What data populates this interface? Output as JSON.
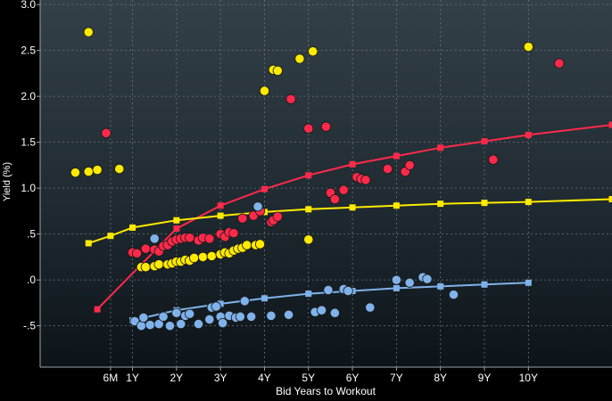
{
  "chart_data": {
    "type": "scatter",
    "title": "",
    "xlabel": "Bid Years to Workout",
    "ylabel": "Yield (%)",
    "xlim": [
      -1.1,
      11.9
    ],
    "ylim": [
      -0.95,
      3.05
    ],
    "grid": true,
    "x_ticks": [
      {
        "value": 0.5,
        "label": "6M"
      },
      {
        "value": 1,
        "label": "1Y"
      },
      {
        "value": 2,
        "label": "2Y"
      },
      {
        "value": 3,
        "label": "3Y"
      },
      {
        "value": 4,
        "label": "4Y"
      },
      {
        "value": 5,
        "label": "5Y"
      },
      {
        "value": 6,
        "label": "6Y"
      },
      {
        "value": 7,
        "label": "7Y"
      },
      {
        "value": 8,
        "label": "8Y"
      },
      {
        "value": 9,
        "label": "9Y"
      },
      {
        "value": 10,
        "label": "10Y"
      }
    ],
    "y_ticks": [
      {
        "value": 3.0,
        "label": "3.0"
      },
      {
        "value": 2.5,
        "label": "2.5"
      },
      {
        "value": 2.0,
        "label": "2.0"
      },
      {
        "value": 1.5,
        "label": "1.5"
      },
      {
        "value": 1.0,
        "label": "1.0"
      },
      {
        "value": 0.5,
        "label": ".5"
      },
      {
        "value": 0.0,
        "label": ".0"
      },
      {
        "value": -0.5,
        "label": "-.5"
      }
    ],
    "curves": [
      {
        "color": "#ff2a4a",
        "marker": "square",
        "x": [
          0.2,
          2.0,
          3.0,
          4.0,
          5.0,
          6.0,
          7.0,
          8.0,
          9.0,
          10.0,
          11.9
        ],
        "y": [
          -0.32,
          0.56,
          0.81,
          0.99,
          1.14,
          1.26,
          1.35,
          1.44,
          1.51,
          1.58,
          1.69
        ]
      },
      {
        "color": "#ffea00",
        "marker": "square",
        "x": [
          0.0,
          0.5,
          1.0,
          2.0,
          3.0,
          4.0,
          5.0,
          6.0,
          7.0,
          8.0,
          9.0,
          10.0,
          11.9
        ],
        "y": [
          0.4,
          0.48,
          0.57,
          0.65,
          0.7,
          0.74,
          0.77,
          0.79,
          0.81,
          0.83,
          0.84,
          0.85,
          0.88
        ]
      },
      {
        "color": "#7fb2ea",
        "marker": "square",
        "x": [
          1.0,
          2.0,
          3.0,
          4.0,
          5.0,
          6.0,
          7.0,
          8.0,
          9.0,
          10.0
        ],
        "y": [
          -0.44,
          -0.33,
          -0.26,
          -0.2,
          -0.15,
          -0.12,
          -0.09,
          -0.07,
          -0.05,
          -0.03
        ]
      }
    ],
    "points": [
      {
        "color": "#ff2a4a",
        "x": [
          0.4,
          1.0,
          1.1,
          1.3,
          1.5,
          1.6,
          1.7,
          1.8,
          1.9,
          2.0,
          2.1,
          2.2,
          2.3,
          2.5,
          2.6,
          2.75,
          3.0,
          3.1,
          3.2,
          3.3,
          3.5,
          3.75,
          3.9,
          4.15,
          4.2,
          4.3,
          4.6,
          5.0,
          5.4,
          5.5,
          5.6,
          5.8,
          6.1,
          6.2,
          6.3,
          6.8,
          7.2,
          7.3,
          9.2,
          10.7
        ],
        "y": [
          1.6,
          0.3,
          0.29,
          0.34,
          0.33,
          0.31,
          0.37,
          0.38,
          0.42,
          0.44,
          0.45,
          0.46,
          0.46,
          0.43,
          0.46,
          0.45,
          0.5,
          0.47,
          0.52,
          0.51,
          0.67,
          0.7,
          0.75,
          0.63,
          0.65,
          0.69,
          1.97,
          1.65,
          1.67,
          0.95,
          0.88,
          0.98,
          1.12,
          1.1,
          1.09,
          1.21,
          1.18,
          1.25,
          1.31,
          2.36
        ]
      },
      {
        "color": "#ffea00",
        "x": [
          -0.3,
          0.0,
          0.0,
          0.2,
          0.7,
          1.2,
          1.3,
          1.5,
          1.6,
          1.8,
          1.9,
          2.0,
          2.1,
          2.2,
          2.3,
          2.4,
          2.6,
          2.8,
          3.0,
          3.1,
          3.2,
          3.3,
          3.4,
          3.5,
          3.6,
          3.8,
          3.9,
          4.0,
          4.2,
          4.3,
          4.8,
          5.0,
          5.1,
          10.0
        ],
        "y": [
          1.17,
          2.7,
          1.18,
          1.2,
          1.21,
          0.14,
          0.14,
          0.15,
          0.17,
          0.17,
          0.18,
          0.2,
          0.2,
          0.22,
          0.21,
          0.24,
          0.25,
          0.26,
          0.28,
          0.3,
          0.29,
          0.32,
          0.34,
          0.35,
          0.38,
          0.38,
          0.39,
          2.06,
          2.29,
          2.28,
          2.41,
          0.44,
          2.49,
          2.54
        ]
      },
      {
        "color": "#7fb2ea",
        "x": [
          1.05,
          1.2,
          1.25,
          1.4,
          1.5,
          1.6,
          1.7,
          1.85,
          2.0,
          2.1,
          2.2,
          2.3,
          2.5,
          2.75,
          2.8,
          2.9,
          3.0,
          3.05,
          3.2,
          3.35,
          3.45,
          3.55,
          3.7,
          3.85,
          4.15,
          4.55,
          5.15,
          5.3,
          5.45,
          5.6,
          5.8,
          5.9,
          6.4,
          7.0,
          7.3,
          7.6,
          7.7,
          8.3
        ],
        "y": [
          -0.45,
          -0.5,
          -0.41,
          -0.49,
          0.45,
          -0.48,
          -0.4,
          -0.5,
          -0.36,
          -0.48,
          -0.39,
          -0.37,
          -0.48,
          -0.43,
          -0.3,
          -0.29,
          -0.4,
          -0.47,
          -0.39,
          -0.41,
          -0.4,
          -0.23,
          -0.4,
          0.8,
          -0.39,
          -0.38,
          -0.35,
          -0.33,
          -0.11,
          -0.36,
          -0.1,
          -0.12,
          -0.3,
          0.0,
          -0.03,
          0.03,
          0.01,
          -0.16
        ]
      }
    ]
  }
}
